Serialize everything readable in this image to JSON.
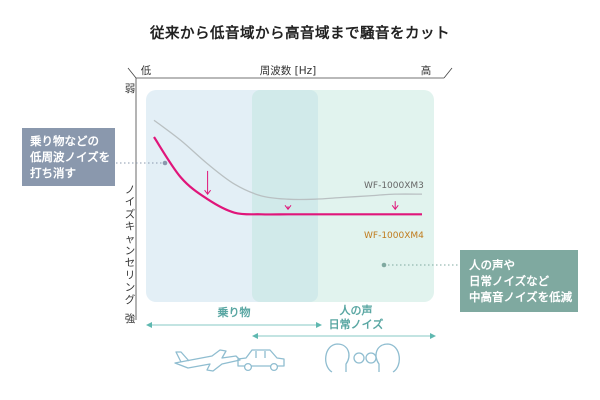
{
  "title": "従来から低音域から高音域まで騒音をカット",
  "callouts": {
    "left": [
      "乗り物などの",
      "低周波ノイズを",
      "打ち消す"
    ],
    "right": [
      "人の声や",
      "日常ノイズなど",
      "中高音ノイズを低減"
    ]
  },
  "colors": {
    "region_low": "#e3eff6",
    "region_mid": "#d1eaea",
    "region_high": "#e1f3ee",
    "xm3_line": "#b9c0c2",
    "xm4_line": "#e0157a",
    "arrow": "#e0157a",
    "band_arrow": "#5fb8b0",
    "icon": "#8fbdd0"
  },
  "icons": [
    "airplane-icon",
    "car-icon",
    "people-talking-icon"
  ],
  "chart_data": {
    "type": "line",
    "title": "",
    "xlabel": "周波数 [Hz]",
    "x_low_label": "低",
    "x_high_label": "高",
    "ylabel": "ノイズキャンセリング",
    "y_top_label": "弱",
    "y_bottom_label": "強",
    "x": [
      0,
      0.1,
      0.2,
      0.3,
      0.4,
      0.5,
      0.6,
      0.7,
      0.8,
      0.9,
      1.0
    ],
    "series": [
      {
        "name": "WF-1000XM3",
        "values": [
          0.82,
          0.7,
          0.56,
          0.44,
          0.37,
          0.35,
          0.35,
          0.36,
          0.37,
          0.38,
          0.38
        ]
      },
      {
        "name": "WF-1000XM4",
        "values": [
          0.72,
          0.48,
          0.35,
          0.27,
          0.26,
          0.26,
          0.26,
          0.26,
          0.26,
          0.26,
          0.26
        ]
      }
    ],
    "bands": [
      {
        "label": "乗り物"
      },
      {
        "label": "人の声\n日常ノイズ"
      }
    ]
  }
}
